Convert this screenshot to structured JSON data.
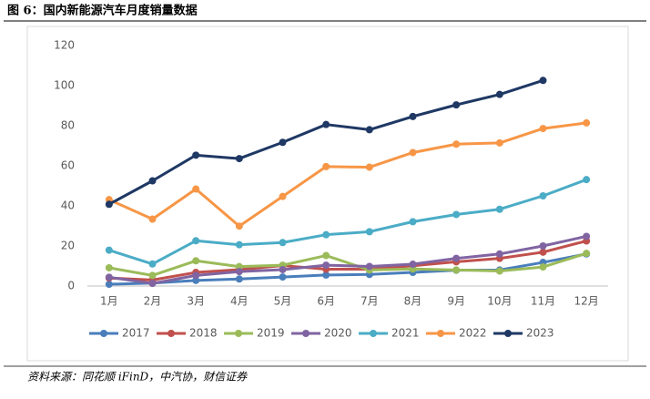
{
  "chart_data": {
    "type": "line",
    "title": "图 6：国内新能源汽车月度销量数据",
    "source": "资料来源：同花顺 iFinD，中汽协，财信证券",
    "categories": [
      "1月",
      "2月",
      "3月",
      "4月",
      "5月",
      "6月",
      "7月",
      "8月",
      "9月",
      "10月",
      "11月",
      "12月"
    ],
    "series": [
      {
        "name": "2017",
        "color": "#4a7ebb",
        "values": [
          0.9,
          1.5,
          2.8,
          3.5,
          4.5,
          5.5,
          5.8,
          6.8,
          7.9,
          8.0,
          11.8,
          16.0
        ]
      },
      {
        "name": "2018",
        "color": "#c0504d",
        "values": [
          4.0,
          3.0,
          6.8,
          8.2,
          10.2,
          8.4,
          8.4,
          10.1,
          12.1,
          13.8,
          16.9,
          22.5
        ]
      },
      {
        "name": "2019",
        "color": "#9bbb59",
        "values": [
          9.1,
          5.3,
          12.6,
          9.7,
          10.4,
          15.2,
          8.0,
          8.5,
          8.0,
          7.5,
          9.5,
          16.3
        ]
      },
      {
        "name": "2020",
        "color": "#8064a2",
        "values": [
          4.4,
          1.3,
          5.3,
          7.2,
          8.2,
          10.4,
          9.8,
          10.9,
          13.8,
          16.0,
          20.0,
          24.8
        ]
      },
      {
        "name": "2021",
        "color": "#4bacc6",
        "values": [
          17.9,
          11.0,
          22.6,
          20.6,
          21.7,
          25.6,
          27.1,
          32.1,
          35.7,
          38.3,
          45.0,
          53.1
        ]
      },
      {
        "name": "2022",
        "color": "#f79646",
        "values": [
          43.1,
          33.4,
          48.4,
          29.9,
          44.7,
          59.6,
          59.3,
          66.6,
          70.8,
          71.4,
          78.6,
          81.4
        ]
      },
      {
        "name": "2023",
        "color": "#1f3864",
        "values": [
          40.8,
          52.5,
          65.3,
          63.6,
          71.7,
          80.6,
          78.0,
          84.6,
          90.4,
          95.6,
          102.6,
          null
        ]
      }
    ],
    "ylim": [
      0,
      120
    ],
    "yticks": [
      0,
      20,
      40,
      60,
      80,
      100,
      120
    ],
    "grid": false,
    "legend": "bottom"
  }
}
